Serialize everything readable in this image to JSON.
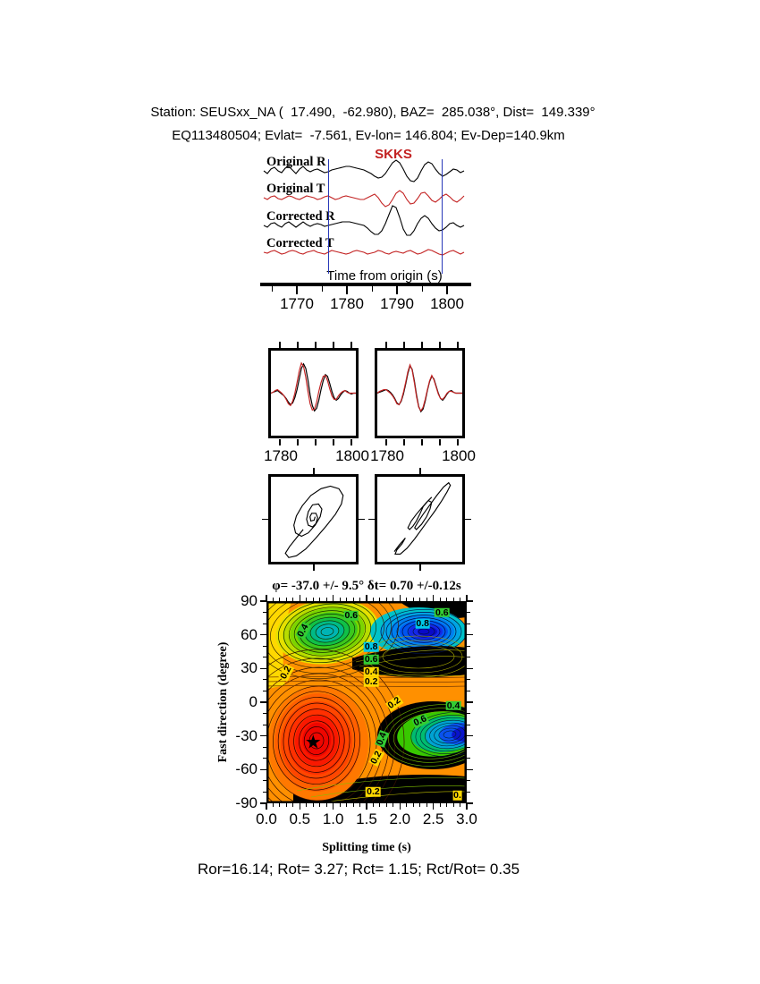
{
  "header": {
    "line1": "Station: SEUSxx_NA (  17.490,  -62.980), BAZ=  285.038°, Dist=  149.339°",
    "line2": "EQ113480504; Evlat=  -7.561, Ev-lon= 146.804; Ev-Dep=140.9km"
  },
  "phase_label": "SKKS",
  "trace_labels": [
    "Original R",
    "Original T",
    "Corrected R",
    "Corrected T"
  ],
  "time_axis_label": "Time from origin (s)",
  "result_line": "φ= -37.0 +/- 9.5° δt= 0.70 +/-0.12s",
  "footer": "Ror=16.14; Rot= 3.27; Rct= 1.15; Rct/Rot= 0.35",
  "colors": {
    "trace_red": "#c32222",
    "trace_black": "#000000",
    "window_marker": "#2838b8",
    "phase_label_red": "#c32222",
    "label_bg": {
      "yellow": "#ffd800",
      "green": "#33cc33",
      "cyan": "#00c8e8"
    }
  },
  "chart_data": [
    {
      "id": "seismograms",
      "type": "line",
      "xlabel": "Time from origin (s)",
      "xlim": [
        1763.4,
        1804.8
      ],
      "xticks": [
        1770,
        1780,
        1790,
        1800
      ],
      "xticks_minor": [
        1765,
        1775,
        1785,
        1795
      ],
      "window_markers": [
        1776.3,
        1799.0
      ],
      "phase_label": "SKKS",
      "phase_time": 1789,
      "series": [
        {
          "name": "Original R",
          "color": "#000000",
          "values": [
            0,
            -3,
            2,
            4,
            0,
            -2,
            3,
            5,
            1,
            -3,
            2,
            5,
            1,
            -1,
            1,
            2,
            0,
            -2,
            -1,
            1,
            2,
            3,
            4,
            5,
            5,
            4,
            3,
            2,
            1,
            -1,
            -3,
            -6,
            -8,
            -7,
            -3,
            3,
            9,
            12,
            9,
            2,
            -6,
            -11,
            -12,
            -8,
            0,
            7,
            10,
            8,
            2,
            -3,
            -6,
            -4,
            -1,
            2,
            1,
            -2,
            0
          ]
        },
        {
          "name": "Original T",
          "color": "#c32222",
          "values": [
            0,
            -2,
            1,
            2,
            -1,
            -2,
            0,
            2,
            1,
            -1,
            -2,
            0,
            2,
            1,
            0,
            -2,
            -1,
            1,
            2,
            0,
            -2,
            -1,
            1,
            2,
            1,
            0,
            -1,
            -2,
            -2,
            0,
            2,
            4,
            0,
            -6,
            -10,
            -8,
            -2,
            5,
            8,
            5,
            -2,
            -7,
            -6,
            -1,
            5,
            6,
            2,
            -3,
            -5,
            -2,
            2,
            4,
            1,
            -3,
            -5,
            -2,
            2
          ]
        },
        {
          "name": "Corrected R",
          "color": "#000000",
          "values": [
            0,
            -2,
            2,
            3,
            0,
            -2,
            2,
            4,
            1,
            -2,
            1,
            4,
            1,
            -1,
            1,
            2,
            1,
            -1,
            0,
            1,
            2,
            3,
            4,
            4,
            4,
            3,
            2,
            1,
            0,
            -3,
            -7,
            -10,
            -10,
            -6,
            2,
            12,
            22,
            20,
            9,
            -4,
            -11,
            -11,
            -6,
            2,
            8,
            11,
            8,
            2,
            -3,
            -6,
            -5,
            -2,
            2,
            3,
            0,
            -2,
            0
          ]
        },
        {
          "name": "Corrected T",
          "color": "#c32222",
          "values": [
            0,
            -1,
            1,
            2,
            0,
            -2,
            -1,
            1,
            2,
            1,
            -1,
            -2,
            0,
            1,
            2,
            0,
            -1,
            -2,
            0,
            2,
            1,
            0,
            -1,
            -2,
            -1,
            1,
            2,
            1,
            0,
            -2,
            -1,
            0,
            2,
            1,
            -1,
            -2,
            0,
            1,
            0,
            -1,
            1,
            2,
            0,
            -2,
            -1,
            1,
            3,
            2,
            0,
            -2,
            -3,
            -1,
            1,
            2,
            0,
            -2,
            0
          ]
        }
      ]
    },
    {
      "id": "waveform-comparison",
      "type": "line",
      "panels": [
        {
          "xticks": [
            "1780",
            "1800"
          ],
          "series": [
            {
              "name": "black",
              "color": "#000000",
              "values": [
                0,
                1,
                2,
                3,
                1,
                -1,
                -3,
                -6,
                -10,
                -13,
                -11,
                -5,
                4,
                16,
                28,
                33,
                28,
                15,
                -2,
                -14,
                -20,
                -17,
                -8,
                4,
                14,
                21,
                19,
                11,
                2,
                -5,
                -8,
                -6,
                -2,
                1,
                3,
                2,
                0,
                -1,
                0,
                0
              ]
            },
            {
              "name": "red",
              "color": "#c32222",
              "values": [
                0,
                1,
                3,
                4,
                2,
                0,
                -3,
                -7,
                -12,
                -14,
                -9,
                0,
                12,
                25,
                34,
                30,
                18,
                2,
                -12,
                -19,
                -18,
                -10,
                2,
                12,
                19,
                20,
                14,
                5,
                -3,
                -7,
                -7,
                -3,
                0,
                2,
                3,
                1,
                0,
                0,
                0,
                0
              ]
            }
          ]
        },
        {
          "xticks": [
            "1780",
            "1800"
          ],
          "series": [
            {
              "name": "black",
              "color": "#000000",
              "values": [
                0,
                1,
                2,
                3,
                4,
                3,
                1,
                -2,
                -6,
                -11,
                -13,
                -9,
                -1,
                10,
                22,
                31,
                27,
                14,
                -2,
                -15,
                -21,
                -18,
                -9,
                3,
                13,
                19,
                16,
                8,
                0,
                -6,
                -8,
                -5,
                -1,
                2,
                3,
                1,
                0,
                0,
                0,
                0
              ]
            },
            {
              "name": "red",
              "color": "#c32222",
              "values": [
                0,
                2,
                3,
                4,
                4,
                2,
                0,
                -3,
                -7,
                -12,
                -13,
                -8,
                1,
                12,
                24,
                32,
                26,
                12,
                -4,
                -16,
                -20,
                -16,
                -7,
                4,
                14,
                20,
                15,
                7,
                -1,
                -6,
                -7,
                -4,
                0,
                2,
                2,
                1,
                0,
                0,
                0,
                0
              ]
            }
          ]
        }
      ]
    },
    {
      "id": "particle-motion",
      "type": "line",
      "panels": [
        {
          "points": [
            [
              38,
              62
            ],
            [
              30,
              72
            ],
            [
              22,
              82
            ],
            [
              17,
              90
            ],
            [
              21,
              95
            ],
            [
              30,
              93
            ],
            [
              41,
              85
            ],
            [
              53,
              72
            ],
            [
              65,
              58
            ],
            [
              76,
              44
            ],
            [
              83,
              32
            ],
            [
              85,
              22
            ],
            [
              80,
              14
            ],
            [
              70,
              11
            ],
            [
              59,
              14
            ],
            [
              47,
              22
            ],
            [
              37,
              34
            ],
            [
              30,
              46
            ],
            [
              27,
              57
            ],
            [
              29,
              66
            ],
            [
              36,
              70
            ],
            [
              44,
              66
            ],
            [
              52,
              57
            ],
            [
              58,
              47
            ],
            [
              60,
              38
            ],
            [
              56,
              32
            ],
            [
              49,
              33
            ],
            [
              44,
              41
            ],
            [
              42,
              50
            ],
            [
              44,
              57
            ],
            [
              49,
              59
            ],
            [
              53,
              55
            ],
            [
              55,
              48
            ],
            [
              53,
              43
            ],
            [
              48,
              43
            ],
            [
              46,
              47
            ],
            [
              47,
              52
            ],
            [
              51,
              51
            ],
            [
              52,
              47
            ]
          ]
        },
        {
          "points": [
            [
              20,
              88
            ],
            [
              26,
              80
            ],
            [
              33,
              72
            ],
            [
              29,
              79
            ],
            [
              23,
              86
            ],
            [
              21,
              91
            ],
            [
              27,
              91
            ],
            [
              35,
              84
            ],
            [
              44,
              73
            ],
            [
              52,
              62
            ],
            [
              60,
              51
            ],
            [
              68,
              40
            ],
            [
              76,
              28
            ],
            [
              82,
              18
            ],
            [
              86,
              10
            ],
            [
              84,
              7
            ],
            [
              78,
              12
            ],
            [
              70,
              22
            ],
            [
              62,
              33
            ],
            [
              54,
              44
            ],
            [
              48,
              53
            ],
            [
              44,
              60
            ],
            [
              46,
              62
            ],
            [
              52,
              56
            ],
            [
              58,
              47
            ],
            [
              62,
              38
            ],
            [
              64,
              30
            ],
            [
              60,
              28
            ],
            [
              54,
              35
            ],
            [
              50,
              44
            ],
            [
              46,
              52
            ],
            [
              42,
              58
            ],
            [
              38,
              62
            ],
            [
              36,
              60
            ],
            [
              40,
              52
            ],
            [
              46,
              44
            ],
            [
              52,
              37
            ],
            [
              58,
              30
            ],
            [
              64,
              24
            ]
          ]
        }
      ]
    },
    {
      "id": "misfit-contour",
      "type": "heatmap",
      "title": "φ= -37.0 +/- 9.5° δt= 0.70 +/-0.12s",
      "xlabel": "Splitting time (s)",
      "ylabel": "Fast direction (degree)",
      "xlim": [
        0,
        3
      ],
      "ylim": [
        -90,
        90
      ],
      "xticks": [
        "0.0",
        "0.5",
        "1.0",
        "1.5",
        "2.0",
        "2.5",
        "3.0"
      ],
      "yticks": [
        "90",
        "60",
        "30",
        "0",
        "-30",
        "-60",
        "-90"
      ],
      "best_solution": {
        "phi_deg": -37.0,
        "phi_err_deg": 9.5,
        "dt_s": 0.7,
        "dt_err_s": 0.12
      },
      "star": {
        "x": 0.7,
        "y": -37
      },
      "contour_labels": [
        {
          "t": "0.4",
          "x": 0.55,
          "y": 64,
          "bg": "green",
          "r": -62
        },
        {
          "t": "0.6",
          "x": 1.27,
          "y": 77,
          "bg": "green",
          "r": 0
        },
        {
          "t": "0.8",
          "x": 2.34,
          "y": 70,
          "bg": "cyan",
          "r": 0
        },
        {
          "t": "0.6",
          "x": 2.63,
          "y": 80,
          "bg": "green",
          "r": 0
        },
        {
          "t": "0.2",
          "x": 0.3,
          "y": 26,
          "bg": "yellow",
          "r": -62
        },
        {
          "t": "0.8",
          "x": 1.57,
          "y": 49,
          "bg": "cyan",
          "r": 0
        },
        {
          "t": "0.6",
          "x": 1.57,
          "y": 38,
          "bg": "green",
          "r": 0
        },
        {
          "t": "0.4",
          "x": 1.57,
          "y": 27,
          "bg": "yellow",
          "r": 0
        },
        {
          "t": "0.2",
          "x": 1.57,
          "y": 18,
          "bg": "yellow",
          "r": 0
        },
        {
          "t": "0.2",
          "x": 1.92,
          "y": -1,
          "bg": "yellow",
          "r": -35
        },
        {
          "t": "0.4",
          "x": 2.8,
          "y": -3,
          "bg": "green",
          "r": 0
        },
        {
          "t": "0.6",
          "x": 2.3,
          "y": -17,
          "bg": "green",
          "r": -25
        },
        {
          "t": "0.4",
          "x": 1.73,
          "y": -33,
          "bg": "green",
          "r": -70
        },
        {
          "t": "0.2",
          "x": 1.65,
          "y": -49,
          "bg": "yellow",
          "r": -62
        },
        {
          "t": "0.2",
          "x": 1.6,
          "y": -80,
          "bg": "yellow",
          "r": 0
        },
        {
          "t": "0.",
          "x": 2.86,
          "y": -83,
          "bg": "yellow",
          "r": 0
        }
      ]
    }
  ]
}
